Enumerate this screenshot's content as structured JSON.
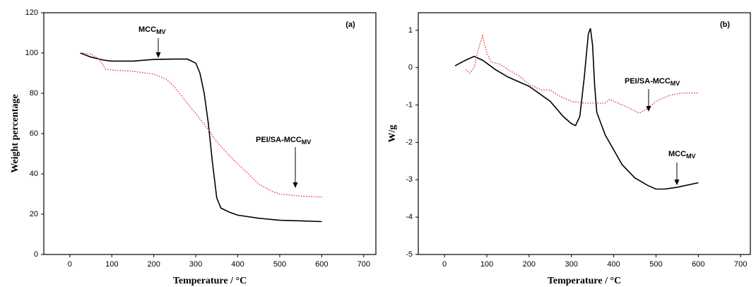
{
  "chart_data": [
    {
      "type": "line",
      "panel_label": "(a)",
      "xlabel": "Temperature / °C",
      "ylabel": "Weight percentage",
      "xlim": [
        -62,
        729
      ],
      "ylim": [
        0,
        120
      ],
      "xticks": [
        0,
        100,
        200,
        300,
        400,
        500,
        600,
        700
      ],
      "yticks": [
        0,
        20,
        40,
        60,
        80,
        100,
        120
      ],
      "series": [
        {
          "color": "#000000",
          "style": "solid",
          "x": [
            25,
            50,
            80,
            100,
            150,
            200,
            250,
            280,
            300,
            310,
            320,
            330,
            340,
            350,
            360,
            380,
            400,
            450,
            500,
            550,
            600
          ],
          "values": [
            100,
            98,
            96.5,
            96,
            96,
            96.8,
            97,
            97,
            95,
            90,
            80,
            65,
            45,
            28,
            23,
            21,
            19.5,
            18,
            17,
            16.7,
            16.3
          ]
        },
        {
          "color": "#e03030",
          "style": "dotted",
          "x": [
            30,
            50,
            70,
            85,
            100,
            150,
            200,
            230,
            250,
            280,
            300,
            330,
            350,
            380,
            400,
            420,
            450,
            480,
            500,
            550,
            600
          ],
          "values": [
            100,
            99.5,
            97,
            92,
            91.5,
            91,
            89.5,
            87,
            83,
            75,
            70,
            62,
            56,
            49,
            45,
            41,
            35,
            31.5,
            30,
            29,
            28.5
          ]
        }
      ],
      "annotations": [
        {
          "text": "MCC",
          "sub": "MV"
        },
        {
          "text": "PEI/SA-MCC",
          "sub": "MV"
        }
      ]
    },
    {
      "type": "line",
      "panel_label": "(b)",
      "xlabel": "Temperature / °C",
      "ylabel": "W/g",
      "xlim": [
        -62,
        723
      ],
      "ylim": [
        -5,
        1.47
      ],
      "xticks": [
        0,
        100,
        200,
        300,
        400,
        500,
        600,
        700
      ],
      "yticks": [
        -5,
        -4,
        -3,
        -2,
        -1,
        0,
        1
      ],
      "series": [
        {
          "color": "#000000",
          "style": "solid",
          "x": [
            25,
            50,
            70,
            90,
            120,
            150,
            200,
            250,
            280,
            300,
            310,
            320,
            330,
            340,
            345,
            350,
            355,
            360,
            380,
            400,
            420,
            450,
            480,
            500,
            520,
            550,
            600
          ],
          "values": [
            0.05,
            0.2,
            0.3,
            0.2,
            -0.05,
            -0.25,
            -0.5,
            -0.9,
            -1.3,
            -1.5,
            -1.55,
            -1.3,
            -0.3,
            0.9,
            1.05,
            0.6,
            -0.5,
            -1.2,
            -1.8,
            -2.2,
            -2.6,
            -2.95,
            -3.15,
            -3.25,
            -3.25,
            -3.2,
            -3.08
          ]
        },
        {
          "color": "#e03030",
          "style": "dotted",
          "x": [
            50,
            60,
            70,
            80,
            90,
            100,
            110,
            130,
            150,
            180,
            200,
            230,
            250,
            270,
            300,
            330,
            350,
            380,
            390,
            410,
            440,
            460,
            480,
            500,
            530,
            560,
            600
          ],
          "values": [
            -0.05,
            -0.15,
            0,
            0.5,
            0.85,
            0.4,
            0.15,
            0.1,
            -0.05,
            -0.25,
            -0.45,
            -0.6,
            -0.6,
            -0.75,
            -0.9,
            -0.95,
            -0.95,
            -0.95,
            -0.85,
            -0.95,
            -1.1,
            -1.22,
            -1.1,
            -0.9,
            -0.75,
            -0.68,
            -0.68
          ]
        }
      ],
      "annotations": [
        {
          "text": "PEI/SA-MCC",
          "sub": "MV"
        },
        {
          "text": "MCC",
          "sub": "MV"
        }
      ]
    }
  ]
}
